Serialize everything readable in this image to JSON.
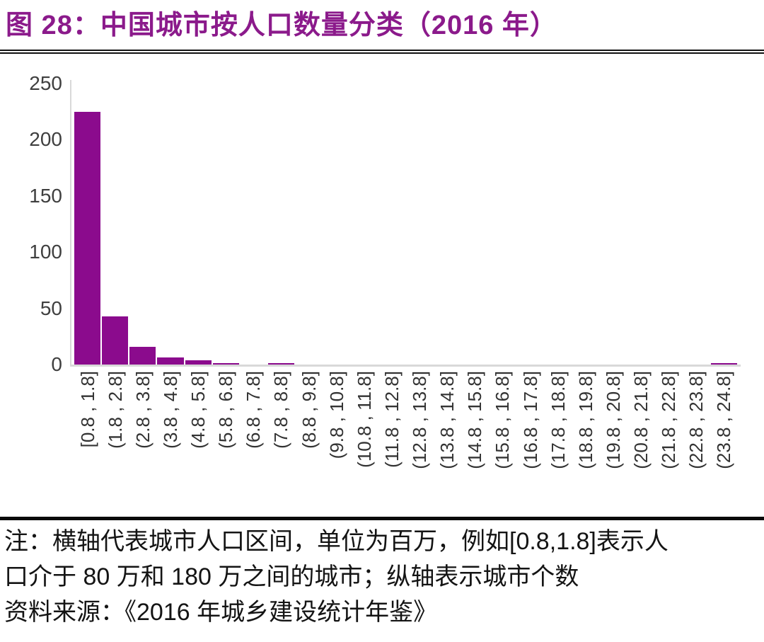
{
  "header": {
    "title": "图 28：中国城市按人口数量分类（2016 年）"
  },
  "chart_data": {
    "type": "bar",
    "title": "中国城市按人口数量分类（2016年）",
    "categories": [
      "[0.8 , 1.8]",
      "(1.8 , 2.8]",
      "(2.8 , 3.8]",
      "(3.8 , 4.8]",
      "(4.8 , 5.8]",
      "(5.8 , 6.8]",
      "(6.8 , 7.8]",
      "(7.8 , 8.8]",
      "(8.8 , 9.8]",
      "(9.8 , 10.8]",
      "(10.8 , 11.8]",
      "(11.8 , 12.8]",
      "(12.8 , 13.8]",
      "(13.8 , 14.8]",
      "(14.8 , 15.8]",
      "(15.8 , 16.8]",
      "(16.8 , 17.8]",
      "(17.8 , 18.8]",
      "(18.8 , 19.8]",
      "(19.8 , 20.8]",
      "(20.8 , 21.8]",
      "(21.8 , 22.8]",
      "(22.8 , 23.8]",
      "(23.8 , 24.8]"
    ],
    "values": [
      225,
      43,
      16,
      6,
      4,
      1,
      0,
      1,
      0,
      0,
      0,
      0,
      0,
      0,
      0,
      0,
      0,
      0,
      0,
      0,
      0,
      0,
      0,
      1
    ],
    "xlabel": "",
    "ylabel": "",
    "ylim": [
      0,
      250
    ],
    "yticks": [
      0,
      50,
      100,
      150,
      200,
      250
    ],
    "grid": false,
    "legend": null,
    "bar_color": "#8B0B8D"
  },
  "notes": {
    "line1": "注：横轴代表城市人口区间，单位为百万，例如[0.8,1.8]表示人",
    "line2": "口介于 80 万和 180 万之间的城市；纵轴表示城市个数",
    "line3": "资料来源：《2016 年城乡建设统计年鉴》"
  },
  "colors": {
    "bar": "#8B0B8D",
    "title_text": "#8B1A8B",
    "axis_line": "#D9D9D9",
    "tick_text": "#3F3F3F",
    "rule": "#0A0A0A"
  }
}
